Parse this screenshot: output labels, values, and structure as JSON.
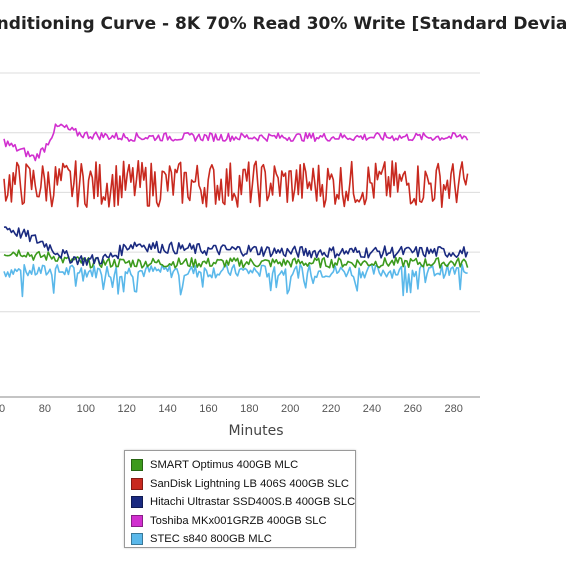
{
  "chart_data": {
    "type": "line",
    "title": "onditioning Curve - 8K 70% Read 30% Write [Standard Devia",
    "xlabel": "Minutes",
    "ylabel": "",
    "xlim": [
      60,
      287
    ],
    "ylim": [
      0,
      8
    ],
    "x_ticks": [
      "0",
      "80",
      "100",
      "120",
      "140",
      "160",
      "180",
      "200",
      "220",
      "240",
      "260",
      "280"
    ],
    "grid": true,
    "legend_position": "bottom",
    "series": [
      {
        "name": "SMART Optimus 400GB MLC",
        "color": "#3c9a1c",
        "x": [
          60,
          70,
          75,
          80,
          85,
          90,
          95,
          100,
          120,
          140,
          160,
          180,
          200,
          220,
          240,
          260,
          287
        ],
        "values": [
          3.4,
          3.4,
          3.3,
          3.3,
          3.3,
          3.2,
          3.2,
          3.15,
          3.15,
          3.15,
          3.15,
          3.15,
          3.15,
          3.15,
          3.15,
          3.15,
          3.15
        ]
      },
      {
        "name": "SanDisk Lightning LB 406S 400GB SLC",
        "color": "#c8291f",
        "x": [
          60,
          287
        ],
        "values": [
          5.0,
          5.0
        ]
      },
      {
        "name": "Hitachi Ultrastar SSD400S.B 400GB SLC",
        "color": "#1a2a80",
        "x": [
          60,
          65,
          70,
          75,
          80,
          85,
          90,
          95,
          100,
          110,
          115,
          120,
          125,
          130,
          140,
          160,
          180,
          200,
          220,
          240,
          260,
          287
        ],
        "values": [
          4.0,
          3.9,
          3.8,
          3.7,
          3.6,
          3.45,
          3.3,
          3.25,
          3.2,
          3.25,
          3.35,
          3.55,
          3.6,
          3.55,
          3.5,
          3.45,
          3.45,
          3.4,
          3.4,
          3.4,
          3.4,
          3.4
        ]
      },
      {
        "name": "Toshiba MKx001GRZB 400GB SLC",
        "color": "#d12fcf",
        "x": [
          60,
          65,
          70,
          75,
          80,
          85,
          88,
          95,
          100,
          120,
          140,
          160,
          180,
          200,
          220,
          240,
          260,
          287
        ],
        "values": [
          6.0,
          5.85,
          5.75,
          5.6,
          5.85,
          6.3,
          6.35,
          6.2,
          6.15,
          6.1,
          6.1,
          6.1,
          6.1,
          6.1,
          6.1,
          6.1,
          6.1,
          6.1
        ]
      },
      {
        "name": "STEC s840 800GB MLC",
        "color": "#5ab8ea",
        "x": [
          60,
          287
        ],
        "values": [
          2.95,
          2.95
        ]
      }
    ]
  }
}
